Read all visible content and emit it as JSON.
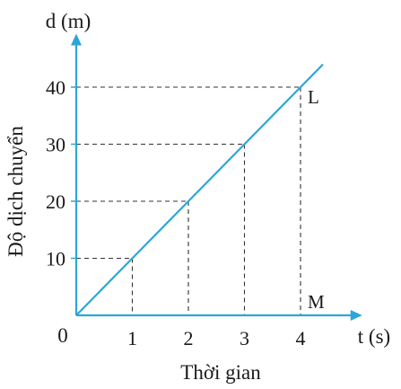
{
  "chart_data": {
    "type": "line",
    "ylabel_unit": "d (m)",
    "xlabel_unit": "t (s)",
    "ylabel": "Độ dịch chuyển",
    "xlabel": "Thời gian",
    "origin_label": "0",
    "x_ticks": [
      "1",
      "2",
      "3",
      "4"
    ],
    "y_ticks": [
      "10",
      "20",
      "30",
      "40"
    ],
    "xlim": [
      0,
      5.1
    ],
    "ylim": [
      0,
      50
    ],
    "grid": false,
    "series": [
      {
        "x": [
          0,
          1,
          2,
          3,
          4,
          4.4
        ],
        "y": [
          0,
          10,
          20,
          30,
          40,
          44
        ]
      }
    ],
    "guides": [
      {
        "x": 1,
        "y": 10
      },
      {
        "x": 2,
        "y": 20
      },
      {
        "x": 3,
        "y": 30
      },
      {
        "x": 4,
        "y": 40
      }
    ],
    "annotations": [
      {
        "text": "L",
        "x": 4,
        "y": 40
      },
      {
        "text": "M",
        "x": 4,
        "y": 0
      }
    ],
    "colors": {
      "line": "#2ca6d8",
      "axis": "#2ca6d8",
      "guide": "#333333",
      "text": "#1a1a1a"
    }
  }
}
